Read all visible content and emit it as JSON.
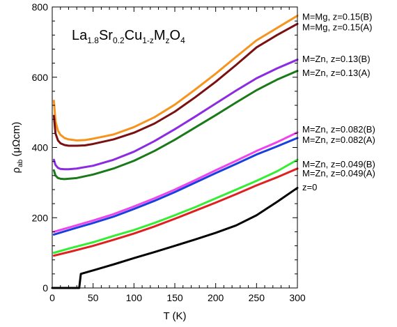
{
  "chart_data": {
    "type": "line",
    "title": "",
    "annotation": {
      "parts": [
        {
          "text": "La",
          "sub": false
        },
        {
          "text": "1.8",
          "sub": true
        },
        {
          "text": "Sr",
          "sub": false
        },
        {
          "text": "0.2",
          "sub": true
        },
        {
          "text": "Cu",
          "sub": false
        },
        {
          "text": "1-z",
          "sub": true
        },
        {
          "text": "M",
          "sub": false
        },
        {
          "text": "z",
          "sub": true
        },
        {
          "text": "O",
          "sub": false
        },
        {
          "text": "4",
          "sub": true
        }
      ]
    },
    "xlabel": "T (K)",
    "ylabel": {
      "main": "ρ",
      "sub": "ab",
      "unit": " (μΩcm)"
    },
    "xlim": [
      0,
      300
    ],
    "ylim": [
      0,
      800
    ],
    "xticks": [
      0,
      50,
      100,
      150,
      200,
      250,
      300
    ],
    "yticks": [
      0,
      200,
      400,
      600,
      800
    ],
    "grid": false,
    "legend_position": "right",
    "series": [
      {
        "name": "M=Mg, z=0.15(B)",
        "color": "#f7941d",
        "x": [
          2,
          4,
          7,
          10,
          15,
          20,
          30,
          40,
          50,
          75,
          100,
          125,
          150,
          175,
          200,
          225,
          250,
          275,
          300
        ],
        "y": [
          533,
          475,
          448,
          436,
          427,
          423,
          420,
          421,
          425,
          437,
          458,
          486,
          522,
          565,
          610,
          658,
          705,
          740,
          775
        ]
      },
      {
        "name": "M=Mg, z=0.15(A)",
        "color": "#7b1010",
        "x": [
          2,
          4,
          7,
          10,
          15,
          20,
          30,
          40,
          50,
          75,
          100,
          125,
          150,
          175,
          200,
          225,
          250,
          275,
          300
        ],
        "y": [
          490,
          440,
          420,
          412,
          407,
          405,
          405,
          406,
          410,
          423,
          442,
          468,
          502,
          543,
          587,
          635,
          685,
          720,
          752
        ]
      },
      {
        "name": "M=Zn, z=0.13(B)",
        "color": "#8b2be2",
        "x": [
          2,
          4,
          7,
          10,
          15,
          20,
          30,
          50,
          75,
          100,
          125,
          150,
          175,
          200,
          225,
          250,
          275,
          300
        ],
        "y": [
          365,
          350,
          342,
          339,
          338,
          338,
          340,
          348,
          365,
          388,
          418,
          452,
          488,
          525,
          562,
          597,
          625,
          650
        ]
      },
      {
        "name": "M=Zn, z=0.13(A)",
        "color": "#1a7a1a",
        "x": [
          2,
          4,
          7,
          10,
          15,
          20,
          30,
          50,
          75,
          100,
          125,
          150,
          175,
          200,
          225,
          250,
          275,
          300
        ],
        "y": [
          335,
          320,
          313,
          311,
          310,
          311,
          313,
          323,
          340,
          362,
          390,
          422,
          457,
          492,
          528,
          563,
          593,
          618
        ]
      },
      {
        "name": "M=Zn, z=0.082(B)",
        "color": "#ee44ee",
        "x": [
          2,
          25,
          50,
          75,
          100,
          125,
          150,
          175,
          200,
          225,
          250,
          275,
          300
        ],
        "y": [
          160,
          175,
          192,
          210,
          232,
          255,
          280,
          307,
          335,
          362,
          390,
          415,
          443
        ]
      },
      {
        "name": "M=Zn, z=0.082(A)",
        "color": "#1a3fe0",
        "x": [
          2,
          25,
          50,
          75,
          100,
          125,
          150,
          175,
          200,
          225,
          250,
          275,
          300
        ],
        "y": [
          152,
          168,
          185,
          203,
          225,
          248,
          273,
          300,
          327,
          353,
          380,
          403,
          427
        ]
      },
      {
        "name": "M=Zn, z=0.049(B)",
        "color": "#33ee33",
        "x": [
          2,
          25,
          50,
          75,
          100,
          125,
          150,
          175,
          200,
          225,
          250,
          275,
          300
        ],
        "y": [
          100,
          115,
          130,
          148,
          165,
          185,
          207,
          230,
          255,
          280,
          305,
          332,
          365
        ]
      },
      {
        "name": "M=Zn, z=0.049(A)",
        "color": "#e02020",
        "x": [
          2,
          25,
          50,
          75,
          100,
          125,
          150,
          175,
          200,
          225,
          250,
          275,
          300
        ],
        "y": [
          92,
          105,
          120,
          137,
          155,
          175,
          197,
          220,
          243,
          267,
          292,
          315,
          340
        ]
      },
      {
        "name": "z=0",
        "color": "#000000",
        "x": [
          0,
          10,
          20,
          30,
          33,
          34,
          35,
          50,
          75,
          100,
          125,
          150,
          175,
          200,
          225,
          250,
          275,
          300
        ],
        "y": [
          0,
          0,
          0,
          0,
          0,
          20,
          40,
          50,
          67,
          85,
          102,
          120,
          138,
          157,
          178,
          207,
          245,
          285
        ]
      }
    ],
    "legend": [
      {
        "text": "M=Mg, z=0.15(B)",
        "value": 773
      },
      {
        "text": "M=Mg, z=0.15(A)",
        "value": 743
      },
      {
        "text": "M=Zn, z=0.13(B)",
        "value": 653
      },
      {
        "text": "M=Zn, z=0.13(A)",
        "value": 613
      },
      {
        "text": "M=Zn, z=0.082(B)",
        "value": 453
      },
      {
        "text": "M=Zn, z=0.082(A)",
        "value": 423
      },
      {
        "text": "M=Zn, z=0.049(B)",
        "value": 353
      },
      {
        "text": "M=Zn, z=0.049(A)",
        "value": 328
      },
      {
        "text": "z=0",
        "value": 288
      }
    ]
  }
}
